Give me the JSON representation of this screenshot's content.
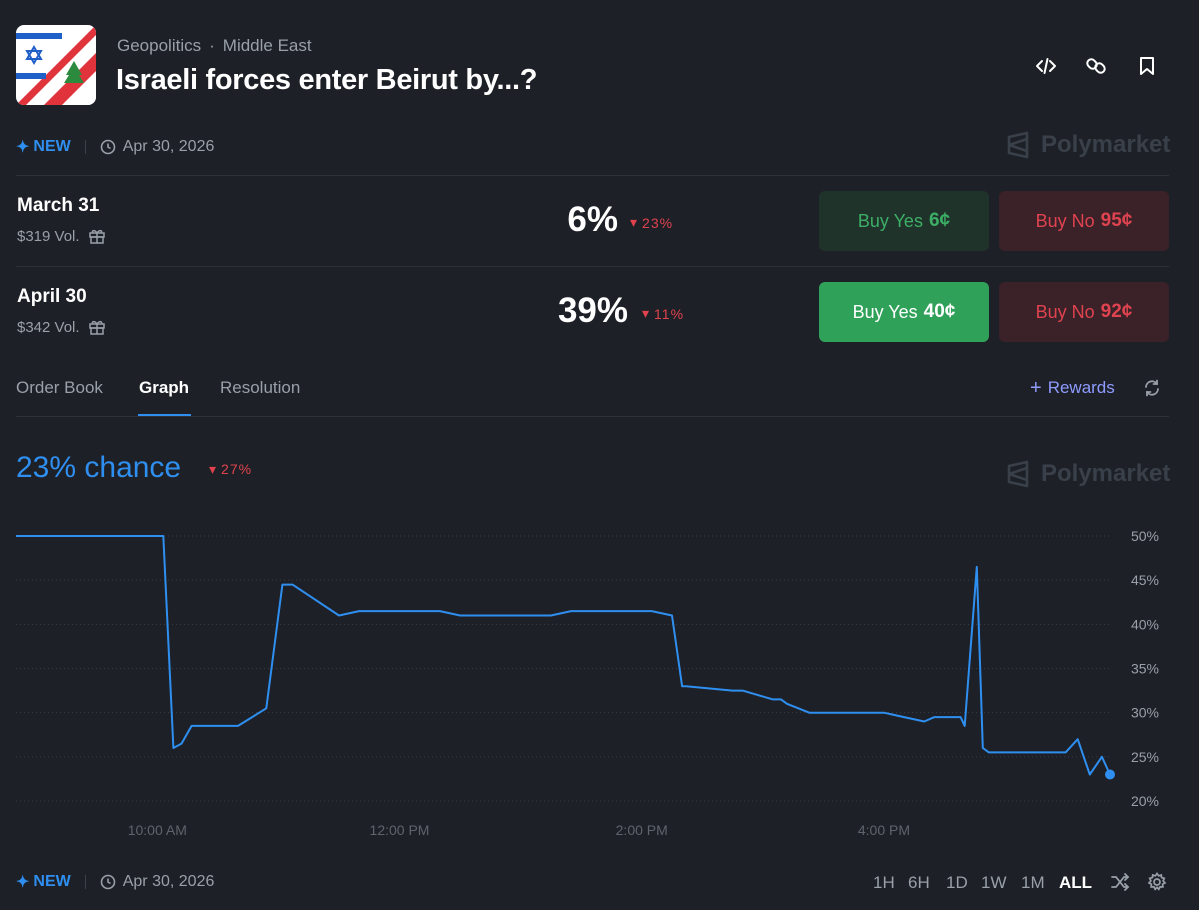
{
  "header": {
    "breadcrumb": [
      "Geopolitics",
      "·",
      "Middle East"
    ],
    "title": "Israeli forces enter Beirut by...?",
    "icons": [
      "code-icon",
      "link-icon",
      "bookmark-icon"
    ]
  },
  "meta": {
    "new_label": "NEW",
    "date": "Apr 30, 2026",
    "brand": "Polymarket"
  },
  "outcomes": [
    {
      "label": "March 31",
      "volume": "$319 Vol.",
      "pct": "6%",
      "change": "23%",
      "buy_yes_label": "Buy Yes",
      "buy_yes_price": "6¢",
      "buy_no_label": "Buy No",
      "buy_no_price": "95¢"
    },
    {
      "label": "April 30",
      "volume": "$342 Vol.",
      "pct": "39%",
      "change": "11%",
      "buy_yes_label": "Buy Yes",
      "buy_yes_price": "40¢",
      "buy_no_label": "Buy No",
      "buy_no_price": "92¢"
    }
  ],
  "tabs": [
    "Order Book",
    "Graph",
    "Resolution"
  ],
  "active_tab": "Graph",
  "rewards_label": "Rewards",
  "chart_header": {
    "chance": "23% chance",
    "change": "27%"
  },
  "chart_data": {
    "type": "line",
    "x_tick_labels": [
      "10:00 AM",
      "12:00 PM",
      "2:00 PM",
      "4:00 PM"
    ],
    "y_tick_labels": [
      "50%",
      "45%",
      "40%",
      "35%",
      "30%",
      "25%",
      "20%"
    ],
    "ylim": [
      20,
      50
    ],
    "grid": true,
    "series": [
      {
        "color": "#2f8ff0",
        "x": [
          "8:50 AM",
          "10:03 AM",
          "10:08 AM",
          "10:12 AM",
          "10:17 AM",
          "10:40 AM",
          "10:47 AM",
          "10:54 AM",
          "11:02 AM",
          "11:07 AM",
          "11:30 AM",
          "11:40 AM",
          "12:20 PM",
          "12:30 PM",
          "1:15 PM",
          "1:25 PM",
          "2:05 PM",
          "2:15 PM",
          "2:20 PM",
          "2:22 PM",
          "2:45 PM",
          "2:50 PM",
          "3:05 PM",
          "3:09 PM",
          "3:12 PM",
          "3:23 PM",
          "3:30 PM",
          "4:00 PM",
          "4:10 PM",
          "4:20 PM",
          "4:25 PM",
          "4:38 PM",
          "4:40 PM",
          "4:46 PM",
          "4:49 PM",
          "4:52 PM",
          "5:00 PM",
          "5:30 PM",
          "5:36 PM",
          "5:42 PM",
          "5:48 PM",
          "5:52 PM"
        ],
        "values": [
          50,
          50,
          26,
          26.5,
          28.5,
          28.5,
          29.5,
          30.5,
          44.5,
          44.5,
          41,
          41.5,
          41.5,
          41,
          41,
          41.5,
          41.5,
          41,
          33,
          33,
          32.5,
          32.5,
          31.5,
          31.5,
          31,
          30,
          30,
          30,
          29.5,
          29,
          29.5,
          29.5,
          28.5,
          46.5,
          26,
          25.5,
          25.5,
          25.5,
          27,
          23,
          25,
          23
        ]
      }
    ]
  },
  "footer": {
    "new_label": "NEW",
    "date": "Apr 30, 2026",
    "ranges": [
      "1H",
      "6H",
      "1D",
      "1W",
      "1M",
      "ALL"
    ],
    "active_range": "ALL"
  }
}
